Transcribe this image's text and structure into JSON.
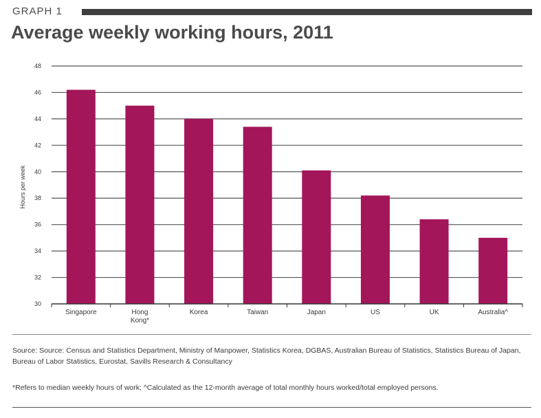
{
  "header": {
    "graph_label": "GRAPH 1",
    "title": "Average weekly working hours, 2011"
  },
  "chart_data": {
    "type": "bar",
    "title": "Average weekly working hours, 2011",
    "xlabel": "",
    "ylabel": "Hours per week",
    "ylim": [
      30,
      48
    ],
    "yticks": [
      30,
      32,
      34,
      36,
      38,
      40,
      42,
      44,
      46,
      48
    ],
    "grid": true,
    "categories": [
      "Singapore",
      "Hong Kong*",
      "Korea",
      "Taiwan",
      "Japan",
      "US",
      "UK",
      "Australia^"
    ],
    "category_lines": [
      [
        "Singapore"
      ],
      [
        "Hong",
        "Kong*"
      ],
      [
        "Korea"
      ],
      [
        "Taiwan"
      ],
      [
        "Japan"
      ],
      [
        "US"
      ],
      [
        "UK"
      ],
      [
        "Australia^"
      ]
    ],
    "values": [
      46.2,
      45.0,
      44.0,
      43.4,
      40.1,
      38.2,
      36.4,
      35.0
    ],
    "bar_color": "#a3165a",
    "grid_color": "#555555",
    "axis_color": "#333333"
  },
  "footer": {
    "source": "Source: Source: Census and Statistics Department, Ministry of Manpower, Statistics Korea, DGBAS, Australian Bureau of Statistics, Statistics Bureau of Japan, Bureau of Labor Statistics, Eurostat, Savills Research & Consultancy",
    "note": "*Refers to median weekly hours of work; ^Calculated as the 12-month average of total monthly hours worked/total employed persons."
  }
}
